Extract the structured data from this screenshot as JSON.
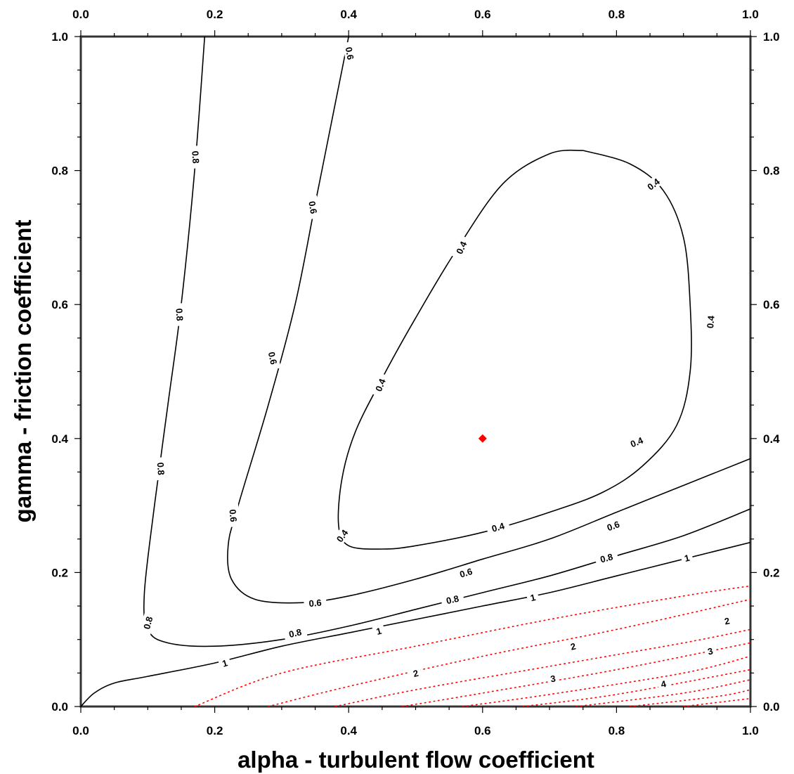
{
  "chart_data": {
    "type": "contour",
    "title": "",
    "xlabel": "alpha - turbulent flow coefficient",
    "ylabel": "gamma - friction coefficient",
    "xlim": [
      0.0,
      1.0
    ],
    "ylim": [
      0.0,
      1.0
    ],
    "xticks": [
      "0.0",
      "0.2",
      "0.4",
      "0.6",
      "0.8",
      "1.0"
    ],
    "yticks": [
      "0.0",
      "0.2",
      "0.4",
      "0.6",
      "0.8",
      "1.0"
    ],
    "grid": false,
    "marker": {
      "x": 0.6,
      "y": 0.4,
      "color": "#ff0000",
      "shape": "diamond"
    },
    "contours": [
      {
        "level": "1",
        "style": "solid",
        "color": "#000000",
        "points": [
          [
            0.0,
            0.0
          ],
          [
            0.02,
            0.02
          ],
          [
            0.05,
            0.035
          ],
          [
            0.1,
            0.045
          ],
          [
            0.2,
            0.065
          ],
          [
            0.3,
            0.09
          ],
          [
            0.4,
            0.11
          ],
          [
            0.5,
            0.13
          ],
          [
            0.6,
            0.15
          ],
          [
            0.7,
            0.17
          ],
          [
            0.8,
            0.195
          ],
          [
            0.9,
            0.22
          ],
          [
            1.0,
            0.245
          ]
        ],
        "labels": [
          [
            0.215,
            0.065,
            -17
          ],
          [
            0.445,
            0.113,
            -15
          ],
          [
            0.675,
            0.163,
            -14
          ],
          [
            0.905,
            0.222,
            -14
          ]
        ]
      },
      {
        "level": "0.8",
        "style": "solid",
        "color": "#000000",
        "points": [
          [
            0.185,
            1.0
          ],
          [
            0.17,
            0.8
          ],
          [
            0.15,
            0.6
          ],
          [
            0.13,
            0.45
          ],
          [
            0.11,
            0.3
          ],
          [
            0.095,
            0.17
          ],
          [
            0.1,
            0.115
          ],
          [
            0.13,
            0.095
          ],
          [
            0.2,
            0.09
          ],
          [
            0.3,
            0.1
          ],
          [
            0.4,
            0.12
          ],
          [
            0.5,
            0.145
          ],
          [
            0.6,
            0.17
          ],
          [
            0.7,
            0.195
          ],
          [
            0.8,
            0.225
          ],
          [
            0.9,
            0.255
          ],
          [
            1.0,
            0.295
          ]
        ],
        "labels": [
          [
            0.172,
            0.82,
            86
          ],
          [
            0.148,
            0.585,
            86
          ],
          [
            0.12,
            0.355,
            86
          ],
          [
            0.1,
            0.125,
            -75
          ],
          [
            0.32,
            0.11,
            -13
          ],
          [
            0.555,
            0.16,
            -13
          ],
          [
            0.785,
            0.222,
            -15
          ]
        ]
      },
      {
        "level": "0.6",
        "style": "solid",
        "color": "#000000",
        "points": [
          [
            0.4,
            1.0
          ],
          [
            0.38,
            0.9
          ],
          [
            0.35,
            0.75
          ],
          [
            0.32,
            0.6
          ],
          [
            0.28,
            0.45
          ],
          [
            0.235,
            0.3
          ],
          [
            0.22,
            0.24
          ],
          [
            0.225,
            0.19
          ],
          [
            0.26,
            0.16
          ],
          [
            0.33,
            0.155
          ],
          [
            0.4,
            0.165
          ],
          [
            0.5,
            0.19
          ],
          [
            0.6,
            0.22
          ],
          [
            0.7,
            0.25
          ],
          [
            0.8,
            0.29
          ],
          [
            0.9,
            0.33
          ],
          [
            1.0,
            0.37
          ]
        ],
        "labels": [
          [
            0.402,
            0.975,
            80
          ],
          [
            0.347,
            0.745,
            80
          ],
          [
            0.287,
            0.52,
            77
          ],
          [
            0.228,
            0.285,
            85
          ],
          [
            0.35,
            0.155,
            -5
          ],
          [
            0.575,
            0.2,
            -17
          ],
          [
            0.795,
            0.27,
            -20
          ]
        ]
      },
      {
        "level": "0.4",
        "style": "closed",
        "color": "#000000",
        "points": [
          [
            0.75,
            0.83
          ],
          [
            0.82,
            0.81
          ],
          [
            0.87,
            0.77
          ],
          [
            0.9,
            0.7
          ],
          [
            0.91,
            0.6
          ],
          [
            0.91,
            0.5
          ],
          [
            0.89,
            0.42
          ],
          [
            0.84,
            0.36
          ],
          [
            0.78,
            0.32
          ],
          [
            0.7,
            0.29
          ],
          [
            0.6,
            0.26
          ],
          [
            0.5,
            0.24
          ],
          [
            0.45,
            0.235
          ],
          [
            0.4,
            0.24
          ],
          [
            0.385,
            0.27
          ],
          [
            0.39,
            0.34
          ],
          [
            0.41,
            0.41
          ],
          [
            0.45,
            0.49
          ],
          [
            0.5,
            0.58
          ],
          [
            0.56,
            0.68
          ],
          [
            0.63,
            0.78
          ],
          [
            0.7,
            0.825
          ],
          [
            0.75,
            0.83
          ]
        ],
        "labels": [
          [
            0.855,
            0.78,
            -38
          ],
          [
            0.94,
            0.574,
            -85
          ],
          [
            0.83,
            0.395,
            -22
          ],
          [
            0.623,
            0.268,
            -16
          ],
          [
            0.39,
            0.255,
            -55
          ],
          [
            0.447,
            0.48,
            -68
          ],
          [
            0.568,
            0.685,
            -65
          ]
        ]
      },
      {
        "level": "2",
        "style": "dotted",
        "color": "#ff0000",
        "points": [
          [
            0.17,
            0.0
          ],
          [
            0.3,
            0.05
          ],
          [
            0.5,
            0.09
          ],
          [
            0.7,
            0.13
          ],
          [
            0.9,
            0.165
          ],
          [
            1.0,
            0.18
          ]
        ],
        "labels": [
          [
            0.5,
            0.05,
            -14
          ],
          [
            0.735,
            0.09,
            -14
          ],
          [
            0.965,
            0.128,
            -12
          ]
        ]
      },
      {
        "level": "",
        "style": "dotted",
        "color": "#ff0000",
        "points": [
          [
            0.28,
            0.0
          ],
          [
            0.4,
            0.03
          ],
          [
            0.6,
            0.075
          ],
          [
            0.8,
            0.115
          ],
          [
            1.0,
            0.16
          ]
        ],
        "labels": []
      },
      {
        "level": "3",
        "style": "dotted",
        "color": "#ff0000",
        "points": [
          [
            0.38,
            0.0
          ],
          [
            0.5,
            0.025
          ],
          [
            0.7,
            0.06
          ],
          [
            0.9,
            0.095
          ],
          [
            1.0,
            0.115
          ]
        ],
        "labels": [
          [
            0.705,
            0.042,
            -10
          ],
          [
            0.94,
            0.083,
            -13
          ]
        ]
      },
      {
        "level": "",
        "style": "dotted",
        "color": "#ff0000",
        "points": [
          [
            0.48,
            0.0
          ],
          [
            0.6,
            0.02
          ],
          [
            0.8,
            0.055
          ],
          [
            1.0,
            0.095
          ]
        ],
        "labels": []
      },
      {
        "level": "4",
        "style": "dotted",
        "color": "#ff0000",
        "points": [
          [
            0.57,
            0.0
          ],
          [
            0.7,
            0.018
          ],
          [
            0.9,
            0.05
          ],
          [
            1.0,
            0.075
          ]
        ],
        "labels": [
          [
            0.87,
            0.034,
            -12
          ]
        ]
      },
      {
        "level": "",
        "style": "dotted",
        "color": "#ff0000",
        "points": [
          [
            0.66,
            0.0
          ],
          [
            0.8,
            0.018
          ],
          [
            1.0,
            0.055
          ]
        ],
        "labels": []
      },
      {
        "level": "",
        "style": "dotted",
        "color": "#ff0000",
        "points": [
          [
            0.74,
            0.0
          ],
          [
            0.9,
            0.02
          ],
          [
            1.0,
            0.04
          ]
        ],
        "labels": []
      },
      {
        "level": "",
        "style": "dotted",
        "color": "#ff0000",
        "points": [
          [
            0.82,
            0.0
          ],
          [
            0.95,
            0.015
          ],
          [
            1.0,
            0.025
          ]
        ],
        "labels": []
      },
      {
        "level": "",
        "style": "dotted",
        "color": "#ff0000",
        "points": [
          [
            0.9,
            0.0
          ],
          [
            1.0,
            0.012
          ]
        ],
        "labels": []
      }
    ]
  }
}
